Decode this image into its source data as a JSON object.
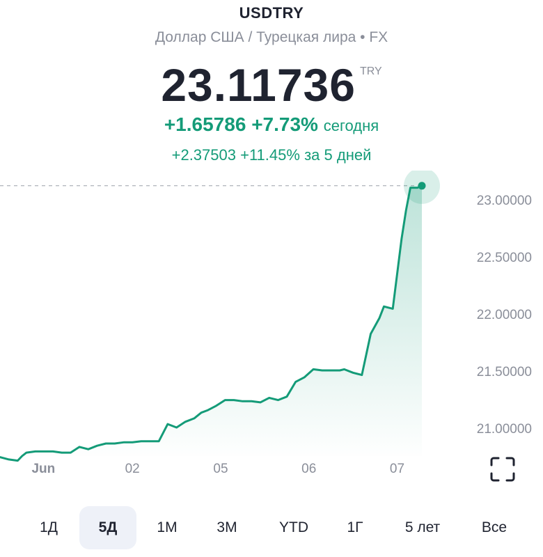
{
  "header": {
    "symbol": "USDTRY",
    "subtitle": "Доллар США / Турецкая лира • FX",
    "price": "23.11736",
    "currency": "TRY",
    "change_abs": "+1.65786",
    "change_pct": "+7.73%",
    "change_label": "сегодня",
    "change5_abs": "+2.37503",
    "change5_pct": "+11.45%",
    "change5_label": "за 5 дней"
  },
  "colors": {
    "line": "#149b78",
    "fill": "#d5f0e6",
    "up_text": "#149b78",
    "axis_text": "#8a8e99",
    "active_period_bg": "#eef1f8"
  },
  "chart_data": {
    "type": "area",
    "title": "",
    "xlabel": "",
    "ylabel": "",
    "ylim": [
      20.75,
      23.25
    ],
    "ytick_labels": [
      "23.00000",
      "22.50000",
      "22.00000",
      "21.50000",
      "21.00000"
    ],
    "ytick_values": [
      23.0,
      22.5,
      22.0,
      21.5,
      21.0
    ],
    "xtick_labels": [
      "Jun",
      "02",
      "05",
      "06",
      "07"
    ],
    "xtick_positions": [
      0.5,
      1.5,
      2.5,
      3.5,
      4.5
    ],
    "last_value_line": 23.117,
    "grid": false,
    "series": [
      {
        "x": [
          0.0,
          0.1,
          0.2,
          0.25,
          0.3,
          0.4,
          0.5,
          0.6,
          0.7,
          0.8,
          0.9,
          1.0,
          1.1,
          1.2,
          1.3,
          1.4,
          1.5,
          1.6,
          1.7,
          1.8,
          1.9,
          2.0,
          2.1,
          2.2,
          2.28,
          2.35,
          2.45,
          2.55,
          2.65,
          2.75,
          2.85,
          2.95,
          3.05,
          3.15,
          3.25,
          3.35,
          3.45,
          3.55,
          3.65,
          3.75,
          3.85,
          3.9,
          4.0,
          4.1,
          4.2,
          4.3,
          4.35,
          4.45,
          4.55,
          4.6,
          4.65,
          4.73,
          4.78
        ],
        "y": [
          20.74,
          20.72,
          20.71,
          20.75,
          20.78,
          20.79,
          20.79,
          20.79,
          20.78,
          20.78,
          20.83,
          20.81,
          20.84,
          20.86,
          20.86,
          20.87,
          20.87,
          20.88,
          20.88,
          20.88,
          21.03,
          21.0,
          21.05,
          21.08,
          21.13,
          21.15,
          21.19,
          21.24,
          21.24,
          21.23,
          21.23,
          21.22,
          21.26,
          21.24,
          21.27,
          21.4,
          21.44,
          21.51,
          21.5,
          21.5,
          21.5,
          21.51,
          21.48,
          21.46,
          21.82,
          21.96,
          22.06,
          22.04,
          22.65,
          22.9,
          23.1,
          23.1,
          23.117
        ]
      }
    ]
  },
  "periods": {
    "items": [
      "1Д",
      "5Д",
      "1М",
      "3М",
      "YTD",
      "1Г",
      "5 лет",
      "Все"
    ],
    "active": "5Д"
  },
  "icons": {
    "fullscreen": "fullscreen-icon"
  }
}
